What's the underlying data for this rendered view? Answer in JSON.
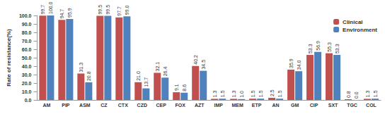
{
  "chart_data": {
    "type": "bar",
    "y_label": "Rate of resistance(%)",
    "categories": [
      "AM",
      "PIP",
      "ASM",
      "CZ",
      "CTX",
      "CZD",
      "CEP",
      "FOX",
      "AZT",
      "IMP",
      "MEM",
      "ETP",
      "AN",
      "GM",
      "CIP",
      "SXT",
      "TGC",
      "COL"
    ],
    "series": [
      {
        "name": "Clinical",
        "color": "#c0504d",
        "values": [
          99.7,
          94.7,
          31.3,
          99.5,
          97.7,
          21.0,
          32.1,
          9.1,
          40.2,
          1.3,
          1.3,
          1.5,
          2.5,
          35.9,
          53.3,
          55.3,
          0.8,
          1.3
        ],
        "value_labels": [
          "99.7",
          "94.7",
          "31.3",
          "99.5",
          "97.7",
          "21.0",
          "32.1",
          "9.1",
          "40.2",
          "1.3",
          "1.3",
          "1.5",
          "2.5",
          "35.9",
          "53.3",
          "55.3",
          "0.8",
          "1.3"
        ]
      },
      {
        "name": "Environment",
        "color": "#4f81bd",
        "values": [
          100.0,
          95.9,
          20.8,
          99.5,
          99.0,
          13.7,
          26.4,
          8.6,
          34.5,
          1.5,
          1.0,
          1.5,
          1.5,
          34.0,
          56.9,
          53.3,
          0.0,
          1.5
        ],
        "value_labels": [
          "100.0",
          "95.9",
          "20.8",
          "99.5",
          "99.0",
          "13.7",
          "26.4",
          "8.6",
          "34.5",
          "1.5",
          "1.0",
          "1.5",
          "1.5",
          "34.0",
          "56.9",
          "53.3",
          "0.0",
          "1.5"
        ]
      }
    ],
    "ylim": [
      0,
      100
    ],
    "yticks": [
      {
        "value": 0,
        "label": "0.0"
      },
      {
        "value": 10,
        "label": "10.0"
      },
      {
        "value": 20,
        "label": "20.0"
      },
      {
        "value": 30,
        "label": "30.0"
      },
      {
        "value": 40,
        "label": "40.0"
      },
      {
        "value": 50,
        "label": "50.0"
      },
      {
        "value": 60,
        "label": "60.0"
      },
      {
        "value": 70,
        "label": "70.0"
      },
      {
        "value": 80,
        "label": "80.0"
      },
      {
        "value": 90,
        "label": "90.0"
      },
      {
        "value": 100,
        "label": "100.0"
      }
    ],
    "grid": false,
    "legend": "top-right",
    "data_labels": true
  }
}
